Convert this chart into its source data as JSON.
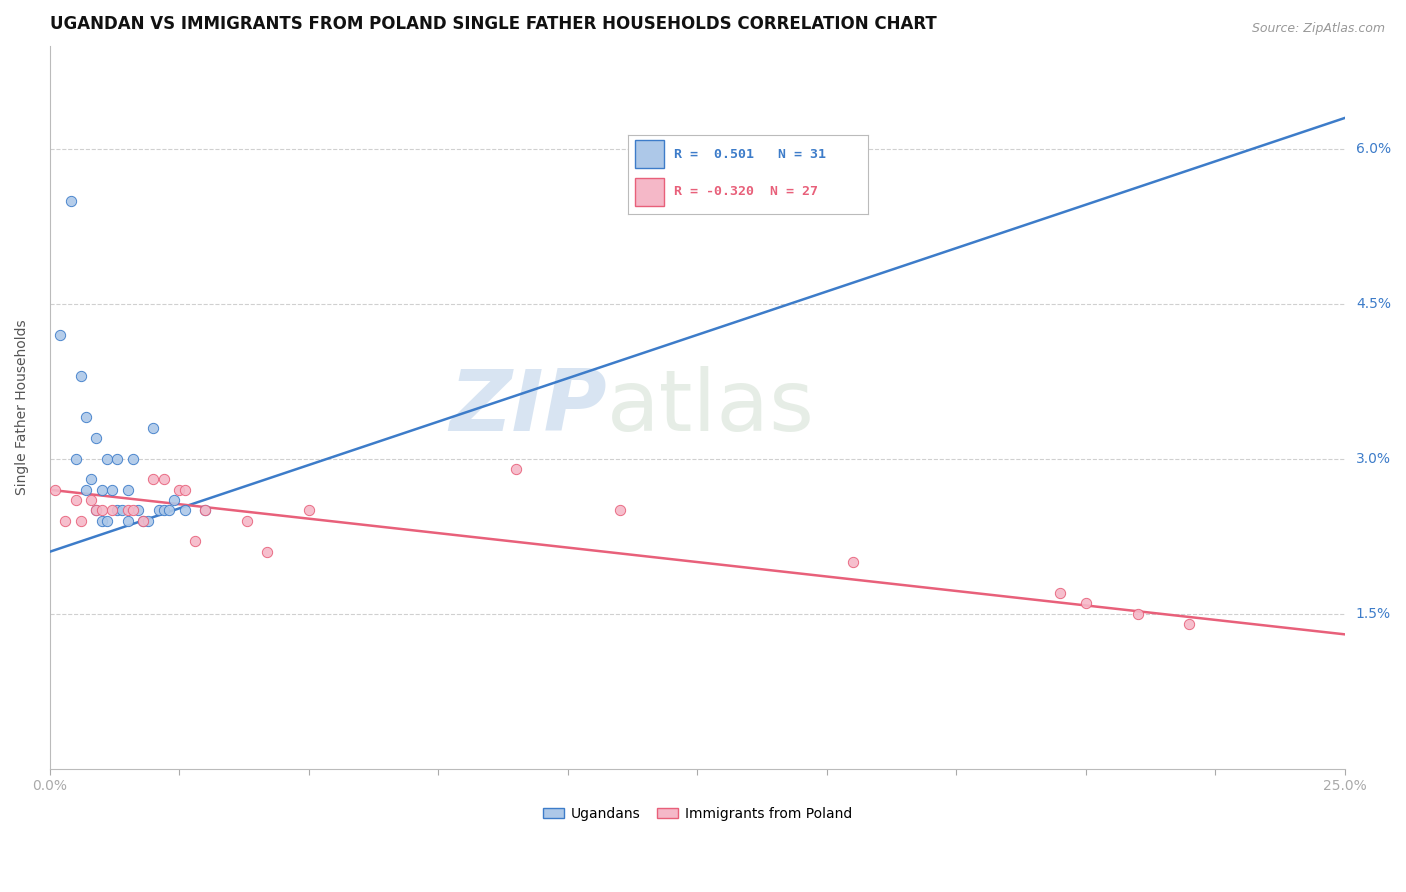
{
  "title": "UGANDAN VS IMMIGRANTS FROM POLAND SINGLE FATHER HOUSEHOLDS CORRELATION CHART",
  "source": "Source: ZipAtlas.com",
  "ylabel": "Single Father Households",
  "xlim": [
    0.0,
    0.25
  ],
  "ylim": [
    0.0,
    0.07
  ],
  "blue_color": "#adc8e8",
  "pink_color": "#f5b8c8",
  "blue_line_color": "#3d7cc9",
  "pink_line_color": "#e8607a",
  "legend_R_blue": "0.501",
  "legend_N_blue": "31",
  "legend_R_pink": "-0.320",
  "legend_N_pink": "27",
  "blue_scatter_x": [
    0.002,
    0.004,
    0.005,
    0.006,
    0.007,
    0.007,
    0.008,
    0.009,
    0.009,
    0.01,
    0.01,
    0.011,
    0.011,
    0.012,
    0.013,
    0.013,
    0.014,
    0.015,
    0.015,
    0.016,
    0.017,
    0.018,
    0.019,
    0.02,
    0.021,
    0.022,
    0.023,
    0.024,
    0.026,
    0.03,
    0.12
  ],
  "blue_scatter_y": [
    0.042,
    0.055,
    0.03,
    0.038,
    0.034,
    0.027,
    0.028,
    0.032,
    0.025,
    0.027,
    0.024,
    0.03,
    0.024,
    0.027,
    0.03,
    0.025,
    0.025,
    0.027,
    0.024,
    0.03,
    0.025,
    0.024,
    0.024,
    0.033,
    0.025,
    0.025,
    0.025,
    0.026,
    0.025,
    0.025,
    0.06
  ],
  "pink_scatter_x": [
    0.001,
    0.003,
    0.005,
    0.006,
    0.008,
    0.009,
    0.01,
    0.012,
    0.015,
    0.016,
    0.018,
    0.02,
    0.022,
    0.025,
    0.026,
    0.028,
    0.03,
    0.038,
    0.042,
    0.05,
    0.09,
    0.11,
    0.155,
    0.195,
    0.2,
    0.21,
    0.22
  ],
  "pink_scatter_y": [
    0.027,
    0.024,
    0.026,
    0.024,
    0.026,
    0.025,
    0.025,
    0.025,
    0.025,
    0.025,
    0.024,
    0.028,
    0.028,
    0.027,
    0.027,
    0.022,
    0.025,
    0.024,
    0.021,
    0.025,
    0.029,
    0.025,
    0.02,
    0.017,
    0.016,
    0.015,
    0.014
  ],
  "blue_line_x0": 0.0,
  "blue_line_y0": 0.021,
  "blue_line_x1": 0.25,
  "blue_line_y1": 0.063,
  "pink_line_x0": 0.0,
  "pink_line_y0": 0.027,
  "pink_line_x1": 0.25,
  "pink_line_y1": 0.013,
  "ytick_positions": [
    0.015,
    0.03,
    0.045,
    0.06
  ],
  "ytick_labels": [
    "1.5%",
    "3.0%",
    "4.5%",
    "6.0%"
  ],
  "xtick_positions": [
    0.0,
    0.025,
    0.05,
    0.075,
    0.1,
    0.125,
    0.15,
    0.175,
    0.2,
    0.225,
    0.25
  ],
  "xtick_labels": [
    "0.0%",
    "",
    "",
    "",
    "",
    "",
    "",
    "",
    "",
    "",
    "25.0%"
  ],
  "watermark_zip": "ZIP",
  "watermark_atlas": "atlas",
  "background_color": "#ffffff",
  "grid_color": "#d0d0d0"
}
